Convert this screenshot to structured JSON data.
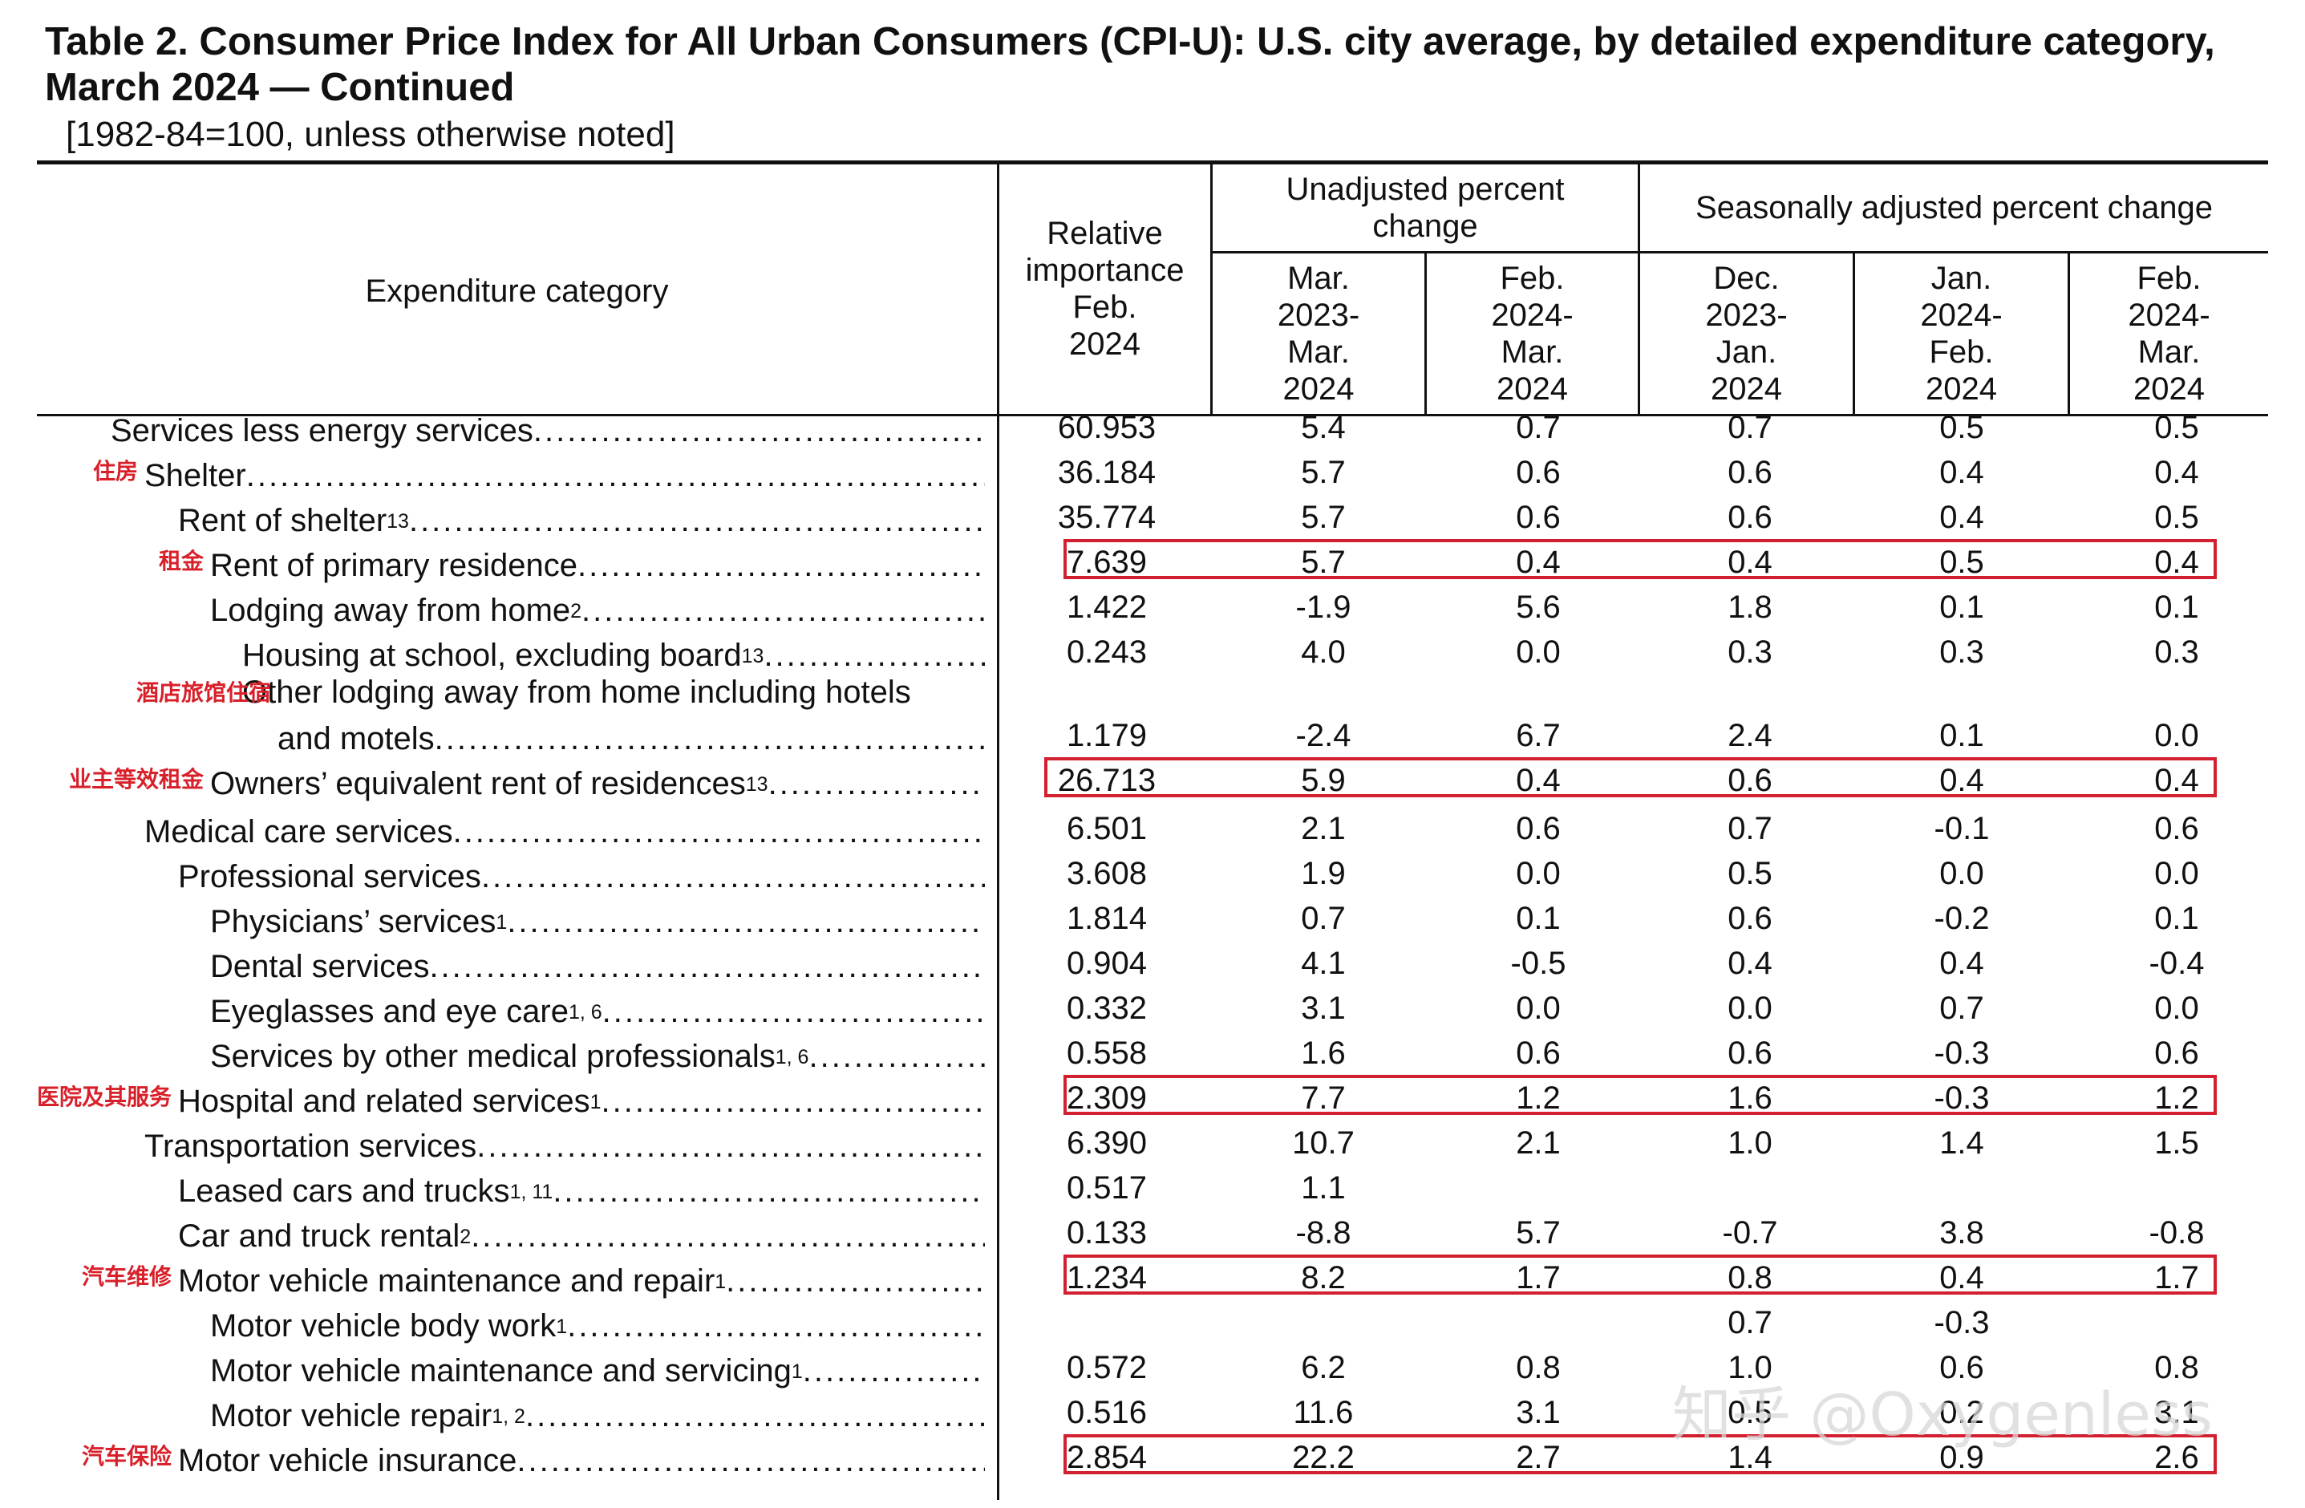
{
  "header": {
    "title": "Table 2. Consumer Price Index for All Urban Consumers (CPI-U): U.S. city average, by detailed expenditure category, March 2024 — Continued",
    "subtitle": "[1982-84=100, unless otherwise noted]",
    "col_category": "Expenditure category",
    "col_relative_importance": [
      "Relative",
      "importance",
      "Feb.",
      "2024"
    ],
    "group_unadjusted": [
      "Unadjusted percent",
      "change"
    ],
    "group_seasonal": "Seasonally adjusted percent change",
    "periods": [
      [
        "Mar.",
        "2023-",
        "Mar.",
        "2024"
      ],
      [
        "Feb.",
        "2024-",
        "Mar.",
        "2024"
      ],
      [
        "Dec.",
        "2023-",
        "Jan.",
        "2024"
      ],
      [
        "Jan.",
        "2024-",
        "Feb.",
        "2024"
      ],
      [
        "Feb.",
        "2024-",
        "Mar.",
        "2024"
      ]
    ]
  },
  "rows": [
    {
      "name": "Services less energy services",
      "sup": "",
      "indent": 0,
      "tag": "",
      "highlight": false,
      "values": [
        "60.953",
        "5.4",
        "0.7",
        "0.7",
        "0.5",
        "0.5"
      ]
    },
    {
      "name": "Shelter",
      "sup": "",
      "indent": 1,
      "tag": "住房",
      "highlight": false,
      "values": [
        "36.184",
        "5.7",
        "0.6",
        "0.6",
        "0.4",
        "0.4"
      ]
    },
    {
      "name": "Rent of shelter",
      "sup": "13",
      "indent": 2,
      "tag": "",
      "highlight": false,
      "values": [
        "35.774",
        "5.7",
        "0.6",
        "0.6",
        "0.4",
        "0.5"
      ]
    },
    {
      "name": "Rent of primary residence",
      "sup": "",
      "indent": 3,
      "tag": "租金",
      "highlight": true,
      "values": [
        "7.639",
        "5.7",
        "0.4",
        "0.4",
        "0.5",
        "0.4"
      ]
    },
    {
      "name": "Lodging away from home",
      "sup": "2",
      "indent": 3,
      "tag": "",
      "highlight": false,
      "values": [
        "1.422",
        "-1.9",
        "5.6",
        "1.8",
        "0.1",
        "0.1"
      ]
    },
    {
      "name": "Housing at school, excluding board",
      "sup": "13",
      "indent": 4,
      "tag": "",
      "highlight": false,
      "values": [
        "0.243",
        "4.0",
        "0.0",
        "0.3",
        "0.3",
        "0.3"
      ]
    },
    {
      "name": "and motels",
      "pre": "Other lodging away from home including hotels",
      "sup": "",
      "indent": 4,
      "tag": "酒店旅馆住宿",
      "highlight": false,
      "tall": true,
      "values": [
        "1.179",
        "-2.4",
        "6.7",
        "2.4",
        "0.1",
        "0.0"
      ]
    },
    {
      "name": "Owners’ equivalent rent of residences",
      "sup": "13",
      "indent": 3,
      "tag": "业主等效租金",
      "highlight": true,
      "values": [
        "26.713",
        "5.9",
        "0.4",
        "0.6",
        "0.4",
        "0.4"
      ]
    },
    {
      "name": "Medical care services",
      "sup": "",
      "indent": 1,
      "tag": "",
      "highlight": false,
      "values": [
        "6.501",
        "2.1",
        "0.6",
        "0.7",
        "-0.1",
        "0.6"
      ]
    },
    {
      "name": "Professional services",
      "sup": "",
      "indent": 2,
      "tag": "",
      "highlight": false,
      "values": [
        "3.608",
        "1.9",
        "0.0",
        "0.5",
        "0.0",
        "0.0"
      ]
    },
    {
      "name": "Physicians’ services",
      "sup": "1",
      "indent": 3,
      "tag": "",
      "highlight": false,
      "values": [
        "1.814",
        "0.7",
        "0.1",
        "0.6",
        "-0.2",
        "0.1"
      ]
    },
    {
      "name": "Dental services",
      "sup": "",
      "indent": 3,
      "tag": "",
      "highlight": false,
      "values": [
        "0.904",
        "4.1",
        "-0.5",
        "0.4",
        "0.4",
        "-0.4"
      ]
    },
    {
      "name": "Eyeglasses and eye care",
      "sup": "1, 6",
      "indent": 3,
      "tag": "",
      "highlight": false,
      "values": [
        "0.332",
        "3.1",
        "0.0",
        "0.0",
        "0.7",
        "0.0"
      ]
    },
    {
      "name": "Services by other medical professionals",
      "sup": "1, 6",
      "indent": 3,
      "tag": "",
      "highlight": false,
      "values": [
        "0.558",
        "1.6",
        "0.6",
        "0.6",
        "-0.3",
        "0.6"
      ]
    },
    {
      "name": "Hospital and related services",
      "sup": "1",
      "indent": 2,
      "tag": "医院及其服务",
      "highlight": true,
      "values": [
        "2.309",
        "7.7",
        "1.2",
        "1.6",
        "-0.3",
        "1.2"
      ]
    },
    {
      "name": "Transportation services",
      "sup": "",
      "indent": 1,
      "tag": "",
      "highlight": false,
      "values": [
        "6.390",
        "10.7",
        "2.1",
        "1.0",
        "1.4",
        "1.5"
      ]
    },
    {
      "name": "Leased cars and trucks",
      "sup": "1, 11",
      "indent": 2,
      "tag": "",
      "highlight": false,
      "values": [
        "0.517",
        "1.1",
        "",
        "",
        "",
        ""
      ]
    },
    {
      "name": "Car and truck rental",
      "sup": "2",
      "indent": 2,
      "tag": "",
      "highlight": false,
      "values": [
        "0.133",
        "-8.8",
        "5.7",
        "-0.7",
        "3.8",
        "-0.8"
      ]
    },
    {
      "name": "Motor vehicle maintenance and repair",
      "sup": "1",
      "indent": 2,
      "tag": "汽车维修",
      "highlight": true,
      "values": [
        "1.234",
        "8.2",
        "1.7",
        "0.8",
        "0.4",
        "1.7"
      ]
    },
    {
      "name": "Motor vehicle body work",
      "sup": "1",
      "indent": 3,
      "tag": "",
      "highlight": false,
      "values": [
        "",
        "",
        "",
        "0.7",
        "-0.3",
        ""
      ]
    },
    {
      "name": "Motor vehicle maintenance and servicing",
      "sup": "1",
      "indent": 3,
      "tag": "",
      "highlight": false,
      "values": [
        "0.572",
        "6.2",
        "0.8",
        "1.0",
        "0.6",
        "0.8"
      ]
    },
    {
      "name": "Motor vehicle repair",
      "sup": "1, 2",
      "indent": 3,
      "tag": "",
      "highlight": false,
      "values": [
        "0.516",
        "11.6",
        "3.1",
        "0.5",
        "0.2",
        "3.1"
      ]
    },
    {
      "name": "Motor vehicle insurance",
      "sup": "",
      "indent": 2,
      "tag": "汽车保险",
      "highlight": true,
      "values": [
        "2.854",
        "22.2",
        "2.7",
        "1.4",
        "0.9",
        "2.6"
      ]
    }
  ],
  "watermark": "知乎 @Oxygenless",
  "colors": {
    "highlight": "#d32030",
    "tag": "#d8202a",
    "text": "#111111"
  }
}
